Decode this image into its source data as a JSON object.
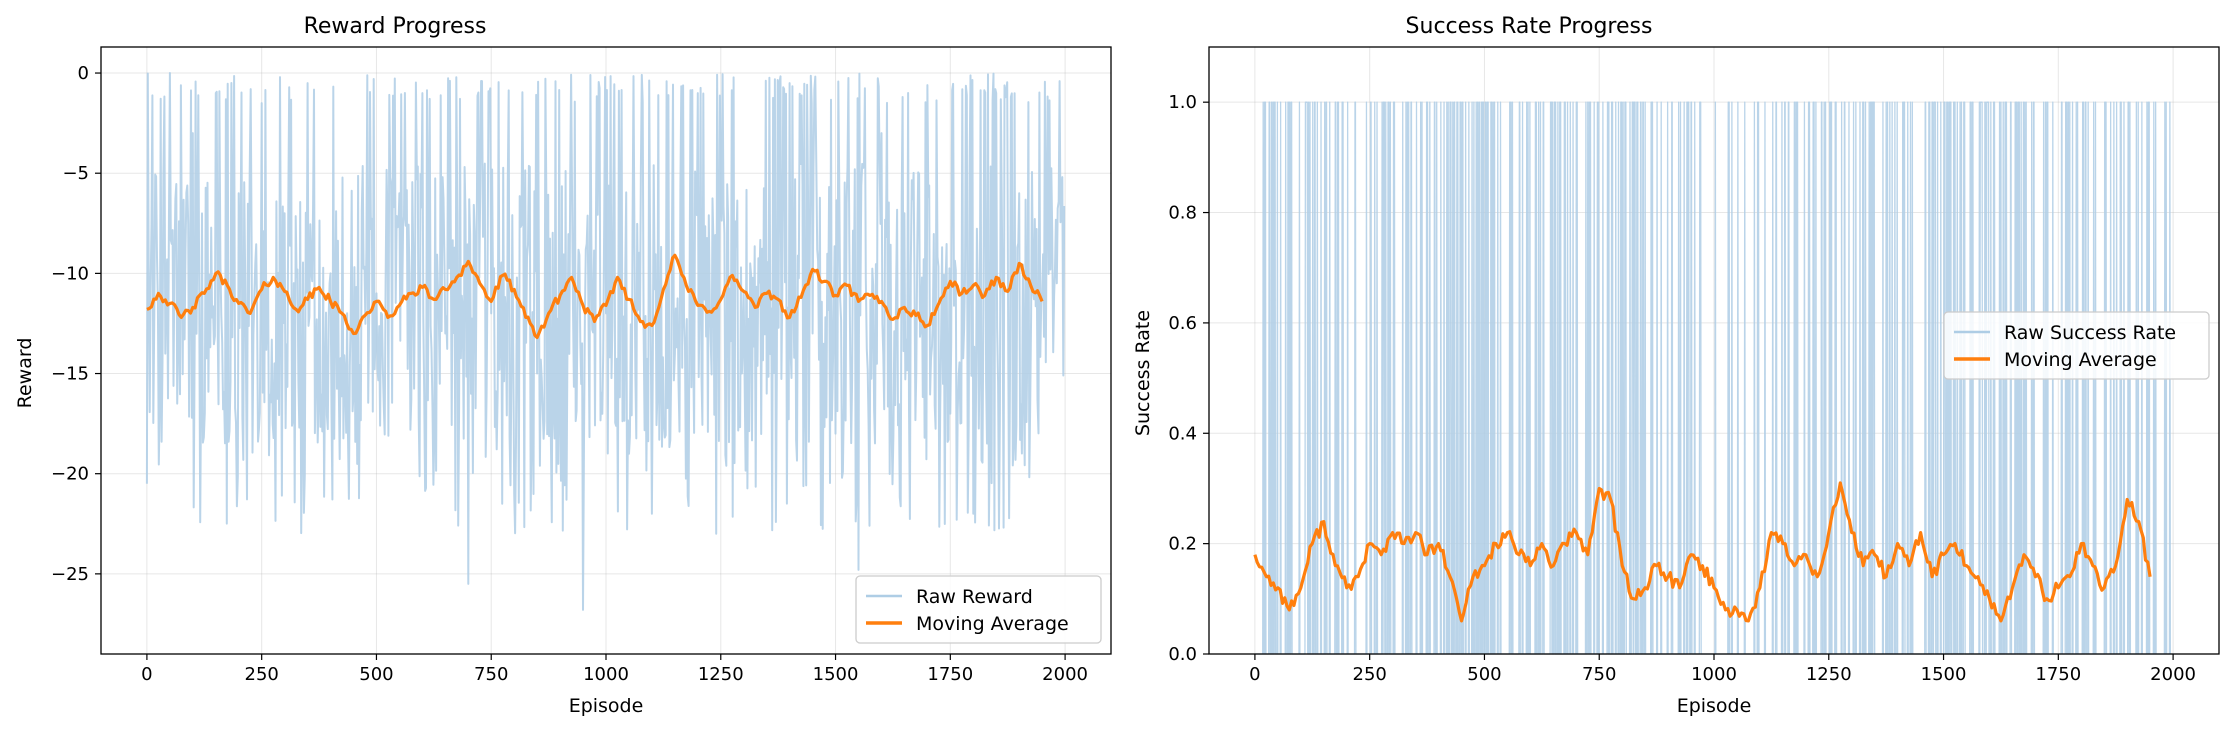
{
  "chart_data": [
    {
      "type": "line",
      "title": "Reward Progress",
      "xlabel": "Episode",
      "ylabel": "Reward",
      "xlim": [
        -100,
        2100
      ],
      "ylim": [
        -29,
        1.3
      ],
      "xticks": [
        0,
        250,
        500,
        750,
        1000,
        1250,
        1500,
        1750,
        2000
      ],
      "yticks": [
        0,
        -5,
        -10,
        -15,
        -20,
        -25
      ],
      "xtick_labels": [
        "0",
        "250",
        "500",
        "750",
        "1000",
        "1250",
        "1500",
        "1750",
        "2000"
      ],
      "ytick_labels": [
        "0",
        "−5",
        "−10",
        "−15",
        "−20",
        "−25"
      ],
      "grid": true,
      "legend_position": "bottom-right",
      "series": [
        {
          "name": "Raw Reward",
          "color": "#aecde5",
          "x_range": [
            0,
            1999
          ],
          "sampled_values": [
            -20.5,
            -8,
            0,
            -27.8,
            -3,
            -14,
            -1,
            -20,
            -6,
            -12,
            -1.5,
            -19,
            -7,
            -13,
            -0.5,
            -22,
            -10,
            -4,
            -16,
            -2,
            -11,
            -24,
            -6,
            -9,
            -1,
            -18,
            -13,
            -3,
            -25.5,
            -8,
            -12,
            -0.8,
            -21,
            -5,
            -15,
            -2,
            -17,
            -10,
            -26.8,
            -4,
            -12,
            -0.5,
            -19,
            -7,
            -22,
            -3,
            -14,
            -9,
            -1,
            -20,
            -6,
            -23,
            -11,
            -2,
            -16,
            -8,
            -0.5,
            -21,
            -13,
            -5,
            -18,
            -1,
            -24.8,
            -10,
            -3,
            -15,
            -7,
            -20,
            -0.6,
            -12,
            -17,
            -4,
            -22,
            -9,
            -1,
            -14,
            -6,
            -25,
            -11,
            -2
          ],
          "peaks": {
            "max": 0,
            "min": -27.8
          }
        },
        {
          "name": "Moving Average",
          "color": "#ff7f0e",
          "window": 50,
          "x": [
            0,
            25,
            50,
            75,
            100,
            125,
            150,
            175,
            200,
            225,
            250,
            275,
            300,
            325,
            350,
            375,
            400,
            425,
            450,
            475,
            500,
            525,
            550,
            575,
            600,
            625,
            650,
            675,
            700,
            725,
            750,
            775,
            800,
            825,
            850,
            875,
            900,
            925,
            950,
            975,
            1000,
            1025,
            1050,
            1075,
            1100,
            1125,
            1150,
            1175,
            1200,
            1225,
            1250,
            1275,
            1300,
            1325,
            1350,
            1375,
            1400,
            1425,
            1450,
            1475,
            1500,
            1525,
            1550,
            1575,
            1600,
            1625,
            1650,
            1675,
            1700,
            1725,
            1750,
            1775,
            1800,
            1825,
            1850,
            1875,
            1900,
            1925,
            1950
          ],
          "values": [
            -11.8,
            -11.0,
            -11.5,
            -12.2,
            -11.7,
            -11.0,
            -10.0,
            -10.6,
            -11.5,
            -12.0,
            -10.8,
            -10.2,
            -10.9,
            -11.8,
            -11.3,
            -10.7,
            -11.4,
            -12.0,
            -13.0,
            -12.1,
            -11.4,
            -12.2,
            -11.6,
            -11.0,
            -10.7,
            -11.3,
            -10.8,
            -10.2,
            -9.4,
            -10.5,
            -11.4,
            -10.1,
            -10.8,
            -12.2,
            -13.2,
            -12.0,
            -11.1,
            -10.2,
            -11.6,
            -12.4,
            -11.6,
            -10.2,
            -11.3,
            -12.4,
            -12.6,
            -10.8,
            -9.1,
            -10.6,
            -11.6,
            -11.9,
            -11.3,
            -10.1,
            -10.9,
            -11.7,
            -11.0,
            -11.3,
            -12.2,
            -11.2,
            -9.8,
            -10.4,
            -11.1,
            -10.6,
            -11.4,
            -11.1,
            -11.4,
            -12.3,
            -11.7,
            -12.1,
            -12.6,
            -11.5,
            -10.4,
            -11.0,
            -10.6,
            -11.1,
            -10.2,
            -10.9,
            -9.5,
            -10.6,
            -11.4
          ]
        }
      ]
    },
    {
      "type": "line",
      "title": "Success Rate Progress",
      "xlabel": "Episode",
      "ylabel": "Success Rate",
      "xlim": [
        -100,
        2100
      ],
      "ylim": [
        0,
        1.1
      ],
      "xticks": [
        0,
        250,
        500,
        750,
        1000,
        1250,
        1500,
        1750,
        2000
      ],
      "yticks": [
        0.0,
        0.2,
        0.4,
        0.6,
        0.8,
        1.0
      ],
      "xtick_labels": [
        "0",
        "250",
        "500",
        "750",
        "1000",
        "1250",
        "1500",
        "1750",
        "2000"
      ],
      "ytick_labels": [
        "0.0",
        "0.2",
        "0.4",
        "0.6",
        "0.8",
        "1.0"
      ],
      "grid": true,
      "legend_position": "center-right",
      "series": [
        {
          "name": "Raw Success Rate",
          "color": "#aecde5",
          "x_range": [
            0,
            1999
          ],
          "values_domain": [
            0,
            1
          ]
        },
        {
          "name": "Moving Average",
          "color": "#ff7f0e",
          "window": 50,
          "x": [
            0,
            25,
            50,
            75,
            100,
            125,
            150,
            175,
            200,
            225,
            250,
            275,
            300,
            325,
            350,
            375,
            400,
            425,
            450,
            475,
            500,
            525,
            550,
            575,
            600,
            625,
            650,
            675,
            700,
            725,
            750,
            775,
            800,
            825,
            850,
            875,
            900,
            925,
            950,
            975,
            1000,
            1025,
            1050,
            1075,
            1100,
            1125,
            1150,
            1175,
            1200,
            1225,
            1250,
            1275,
            1300,
            1325,
            1350,
            1375,
            1400,
            1425,
            1450,
            1475,
            1500,
            1525,
            1550,
            1575,
            1600,
            1625,
            1650,
            1675,
            1700,
            1725,
            1750,
            1775,
            1800,
            1825,
            1850,
            1875,
            1900,
            1925,
            1950
          ],
          "values": [
            0.18,
            0.14,
            0.12,
            0.08,
            0.12,
            0.2,
            0.24,
            0.16,
            0.12,
            0.14,
            0.2,
            0.18,
            0.22,
            0.2,
            0.22,
            0.18,
            0.2,
            0.14,
            0.06,
            0.14,
            0.16,
            0.2,
            0.22,
            0.18,
            0.16,
            0.2,
            0.16,
            0.2,
            0.22,
            0.18,
            0.3,
            0.28,
            0.16,
            0.1,
            0.12,
            0.16,
            0.14,
            0.12,
            0.18,
            0.16,
            0.12,
            0.08,
            0.08,
            0.06,
            0.12,
            0.22,
            0.2,
            0.16,
            0.18,
            0.14,
            0.22,
            0.31,
            0.22,
            0.16,
            0.18,
            0.14,
            0.2,
            0.16,
            0.22,
            0.14,
            0.18,
            0.2,
            0.16,
            0.14,
            0.1,
            0.06,
            0.12,
            0.18,
            0.14,
            0.1,
            0.12,
            0.14,
            0.2,
            0.16,
            0.12,
            0.16,
            0.28,
            0.24,
            0.14
          ]
        }
      ]
    }
  ]
}
